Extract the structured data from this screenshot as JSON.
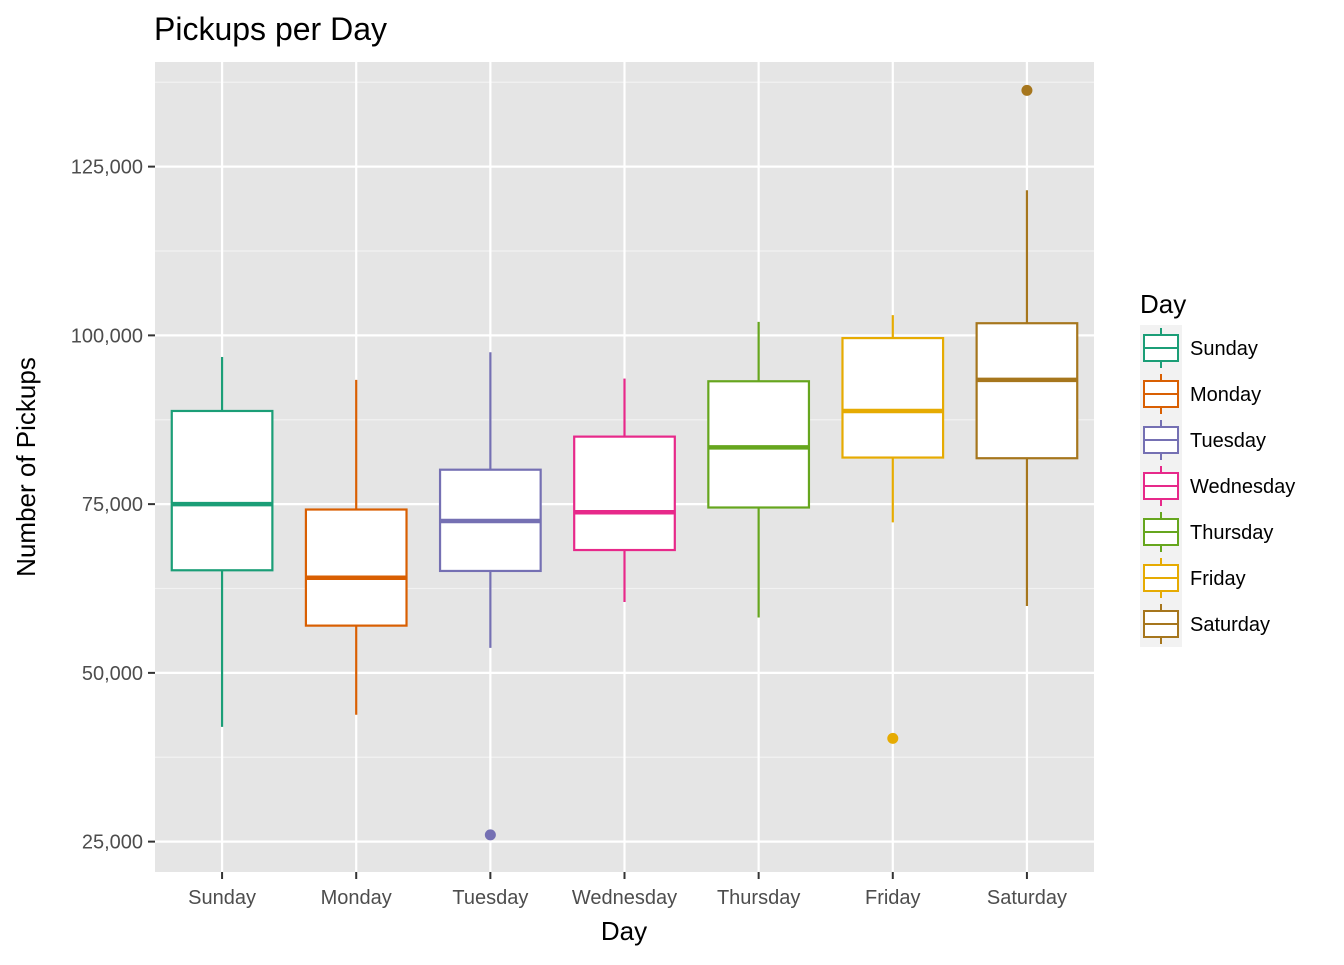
{
  "chart_data": {
    "type": "boxplot",
    "title": "Pickups per Day",
    "xlabel": "Day",
    "ylabel": "Number of Pickups",
    "ylim": [
      20500,
      140500
    ],
    "yticks": [
      25000,
      50000,
      75000,
      100000,
      125000
    ],
    "ytick_labels": [
      "25,000",
      "50,000",
      "75,000",
      "100,000",
      "125,000"
    ],
    "grid": true,
    "legend": {
      "title": "Day",
      "placement": "right"
    },
    "categories": [
      "Sunday",
      "Monday",
      "Tuesday",
      "Wednesday",
      "Thursday",
      "Friday",
      "Saturday"
    ],
    "series": [
      {
        "name": "Sunday",
        "color": "#1b9e77",
        "whisker_low": 42000,
        "q1": 65200,
        "median": 75000,
        "q3": 88800,
        "whisker_high": 96800,
        "outliers": []
      },
      {
        "name": "Monday",
        "color": "#d95f02",
        "whisker_low": 43800,
        "q1": 57000,
        "median": 64100,
        "q3": 74200,
        "whisker_high": 93400,
        "outliers": []
      },
      {
        "name": "Tuesday",
        "color": "#7570b3",
        "whisker_low": 53700,
        "q1": 65100,
        "median": 72500,
        "q3": 80100,
        "whisker_high": 97500,
        "outliers": [
          26000
        ]
      },
      {
        "name": "Wednesday",
        "color": "#e7298a",
        "whisker_low": 60500,
        "q1": 68200,
        "median": 73800,
        "q3": 85000,
        "whisker_high": 93600,
        "outliers": []
      },
      {
        "name": "Thursday",
        "color": "#66a61e",
        "whisker_low": 58200,
        "q1": 74500,
        "median": 83400,
        "q3": 93200,
        "whisker_high": 102000,
        "outliers": []
      },
      {
        "name": "Friday",
        "color": "#e6ab02",
        "whisker_low": 72300,
        "q1": 81900,
        "median": 88800,
        "q3": 99600,
        "whisker_high": 103000,
        "outliers": [
          40300
        ]
      },
      {
        "name": "Saturday",
        "color": "#a6761d",
        "whisker_low": 59900,
        "q1": 81800,
        "median": 93400,
        "q3": 101800,
        "whisker_high": 121500,
        "outliers": [
          136300
        ]
      }
    ]
  }
}
